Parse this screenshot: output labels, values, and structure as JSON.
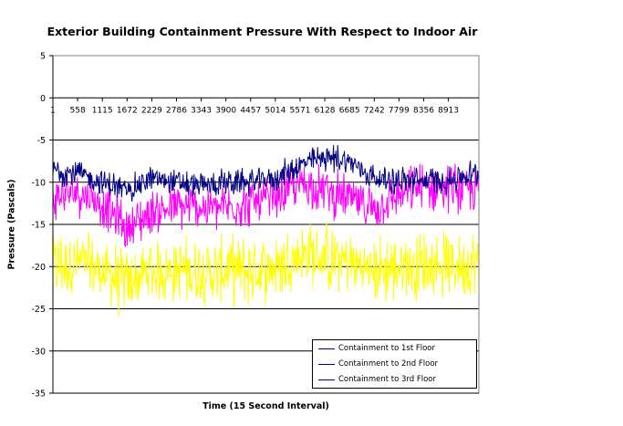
{
  "chart_data": {
    "type": "line",
    "title": "Exterior Building Containment Pressure With Respect to Indoor Air",
    "xlabel": "Time (15 Second Interval)",
    "ylabel": "Pressure (Pascals)",
    "ylim": [
      -35,
      5
    ],
    "yticks": [
      5,
      0,
      -5,
      -10,
      -15,
      -20,
      -25,
      -30,
      -35
    ],
    "xlim": [
      1,
      9600
    ],
    "xticks": [
      "1",
      "558",
      "1115",
      "1672",
      "2229",
      "2786",
      "3343",
      "3900",
      "4457",
      "5014",
      "5571",
      "6128",
      "6685",
      "7242",
      "7799",
      "8356",
      "8913"
    ],
    "grid": true,
    "legend_position": "bottom-right",
    "x": [
      1,
      558,
      1115,
      1672,
      2229,
      2786,
      3343,
      3900,
      4457,
      5014,
      5571,
      6128,
      6685,
      7242,
      7799,
      8356,
      8913,
      9500
    ],
    "series": [
      {
        "name": "Containment to 1st Floor",
        "color": "#000080",
        "values": [
          -8.5,
          -9.0,
          -10.0,
          -11.0,
          -9.5,
          -10.0,
          -10.5,
          -10.0,
          -10.0,
          -9.5,
          -8.0,
          -7.0,
          -7.5,
          -9.5,
          -9.8,
          -9.8,
          -9.8,
          -9.0
        ]
      },
      {
        "name": "Containment to 2nd Floor",
        "color": "#ff00ff",
        "values": [
          -12.0,
          -11.0,
          -12.5,
          -15.5,
          -13.5,
          -13.0,
          -13.0,
          -13.0,
          -12.5,
          -12.0,
          -10.0,
          -11.0,
          -12.0,
          -13.0,
          -11.5,
          -10.5,
          -10.5,
          -11.0
        ]
      },
      {
        "name": "Containment to 3rd Floor",
        "color": "#ffff00",
        "values": [
          -20.0,
          -19.5,
          -20.5,
          -22.0,
          -20.5,
          -20.5,
          -20.5,
          -20.5,
          -20.5,
          -20.0,
          -18.5,
          -19.0,
          -19.5,
          -20.5,
          -20.0,
          -19.8,
          -19.8,
          -19.5
        ]
      }
    ]
  }
}
